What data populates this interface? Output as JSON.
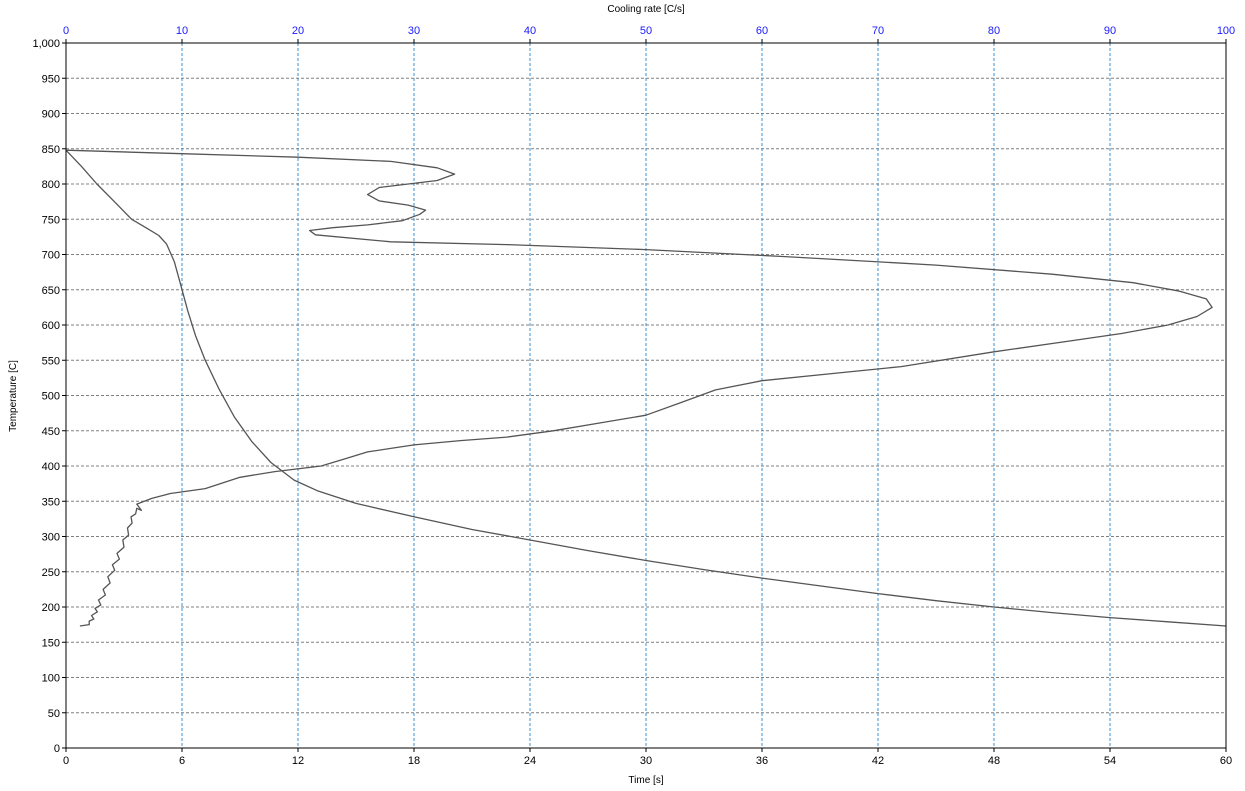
{
  "chart_data": {
    "type": "line",
    "title": "",
    "xlabel": "Time [s]",
    "ylabel": "Temperature [C]",
    "x2label": "Cooling rate [C/s]",
    "xlim": [
      0,
      60
    ],
    "ylim": [
      0,
      1000
    ],
    "x2lim": [
      0,
      100
    ],
    "xticks": [
      "0",
      "6",
      "12",
      "18",
      "24",
      "30",
      "36",
      "42",
      "48",
      "54",
      "60"
    ],
    "x2ticks": [
      "0",
      "10",
      "20",
      "30",
      "40",
      "50",
      "60",
      "70",
      "80",
      "90",
      "100"
    ],
    "yticks": [
      "0",
      "50",
      "100",
      "150",
      "200",
      "250",
      "300",
      "350",
      "400",
      "450",
      "500",
      "550",
      "600",
      "650",
      "700",
      "750",
      "800",
      "850",
      "900",
      "950",
      "1,000"
    ],
    "grid": true,
    "colors": {
      "series": "#555555",
      "x2_axis_text": "#1a1aff",
      "vertical_grid": "#3a8fd0",
      "horizontal_grid": "#808080",
      "frame": "#000000"
    },
    "series": [
      {
        "axis": "bottom",
        "x_unit": "s",
        "points": [
          [
            0,
            848
          ],
          [
            0.8,
            825
          ],
          [
            1.6,
            800
          ],
          [
            2.5,
            775
          ],
          [
            3.4,
            750
          ],
          [
            4.2,
            737
          ],
          [
            4.8,
            727
          ],
          [
            5.2,
            715
          ],
          [
            5.6,
            690
          ],
          [
            5.9,
            660
          ],
          [
            6.3,
            620
          ],
          [
            6.7,
            585
          ],
          [
            7.2,
            550
          ],
          [
            7.9,
            510
          ],
          [
            8.7,
            470
          ],
          [
            9.6,
            435
          ],
          [
            10.6,
            405
          ],
          [
            11.8,
            380
          ],
          [
            13.0,
            365
          ],
          [
            15.0,
            347
          ],
          [
            18.0,
            328
          ],
          [
            21.0,
            310
          ],
          [
            24.0,
            295
          ],
          [
            27.0,
            280
          ],
          [
            30.0,
            266
          ],
          [
            33.0,
            253
          ],
          [
            36.0,
            241
          ],
          [
            39.0,
            230
          ],
          [
            42.0,
            219
          ],
          [
            45.0,
            209
          ],
          [
            48.0,
            200
          ],
          [
            51.0,
            192
          ],
          [
            54.0,
            185
          ],
          [
            57.0,
            179
          ],
          [
            60.0,
            173
          ]
        ]
      },
      {
        "axis": "top",
        "x_unit": "C/s",
        "points": [
          [
            1.2,
            173
          ],
          [
            2.0,
            175
          ],
          [
            2.0,
            180
          ],
          [
            2.4,
            183
          ],
          [
            2.2,
            188
          ],
          [
            2.7,
            193
          ],
          [
            2.5,
            198
          ],
          [
            3.0,
            203
          ],
          [
            2.8,
            210
          ],
          [
            3.4,
            217
          ],
          [
            3.2,
            225
          ],
          [
            3.8,
            234
          ],
          [
            3.6,
            243
          ],
          [
            4.2,
            252
          ],
          [
            4.0,
            260
          ],
          [
            4.6,
            268
          ],
          [
            4.4,
            276
          ],
          [
            5.0,
            285
          ],
          [
            4.9,
            295
          ],
          [
            5.4,
            302
          ],
          [
            5.3,
            312
          ],
          [
            5.7,
            319
          ],
          [
            5.6,
            328
          ],
          [
            6.0,
            332
          ],
          [
            6.1,
            340
          ],
          [
            6.5,
            337
          ],
          [
            6.1,
            346
          ],
          [
            7.4,
            354
          ],
          [
            9.0,
            361
          ],
          [
            12.0,
            368
          ],
          [
            15.0,
            384
          ],
          [
            18.0,
            392
          ],
          [
            22.0,
            400
          ],
          [
            24.0,
            410
          ],
          [
            26.0,
            420
          ],
          [
            28.0,
            425
          ],
          [
            30.0,
            430
          ],
          [
            34.0,
            436
          ],
          [
            38.0,
            441
          ],
          [
            42.0,
            450
          ],
          [
            46.0,
            461
          ],
          [
            50.0,
            472
          ],
          [
            53.0,
            490
          ],
          [
            56.0,
            508
          ],
          [
            60.0,
            521
          ],
          [
            66.0,
            531
          ],
          [
            72.0,
            541
          ],
          [
            80.0,
            562
          ],
          [
            86.0,
            576
          ],
          [
            91.0,
            588
          ],
          [
            95.0,
            600
          ],
          [
            97.5,
            612
          ],
          [
            98.8,
            625
          ],
          [
            98.3,
            637
          ],
          [
            96.0,
            648
          ],
          [
            92.0,
            660
          ],
          [
            85.0,
            672
          ],
          [
            75.0,
            685
          ],
          [
            62.0,
            697
          ],
          [
            50.0,
            707
          ],
          [
            38.0,
            714
          ],
          [
            28.0,
            718
          ],
          [
            21.5,
            728
          ],
          [
            21.0,
            734
          ],
          [
            23.0,
            738
          ],
          [
            26.0,
            742
          ],
          [
            29.0,
            748
          ],
          [
            30.5,
            757
          ],
          [
            31.0,
            763
          ],
          [
            29.5,
            770
          ],
          [
            27.0,
            776
          ],
          [
            26.0,
            785
          ],
          [
            27.0,
            795
          ],
          [
            29.5,
            800
          ],
          [
            32.0,
            805
          ],
          [
            33.5,
            814
          ],
          [
            32.0,
            823
          ],
          [
            28.0,
            832
          ],
          [
            20.0,
            838
          ],
          [
            10.0,
            843
          ],
          [
            0.0,
            848
          ]
        ]
      }
    ]
  }
}
